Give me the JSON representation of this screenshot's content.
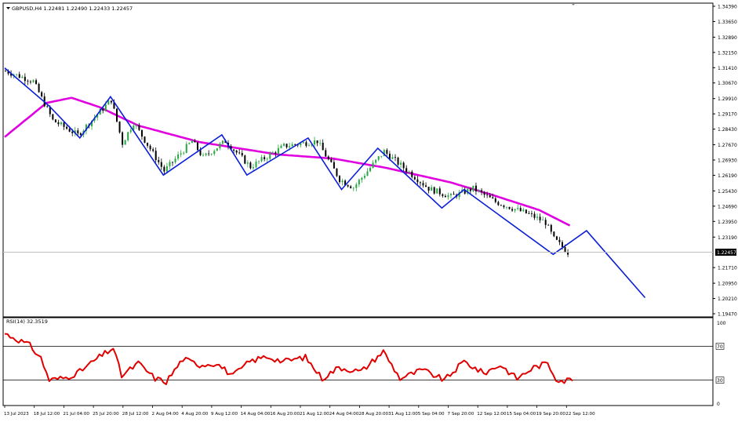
{
  "header": {
    "symbol_line": "GBPUSD,H4  1.22481 1.22490 1.22433 1.22457",
    "indicator_label": "RSI(14) 32.3519"
  },
  "colors": {
    "bull_candle": "#26a641",
    "bear_candle": "#000000",
    "moving_average": "#e000e0",
    "zigzag": "#0b1fd6",
    "rsi_line": "#e00000",
    "current_price_tag": "#000000"
  },
  "chart_data": [
    {
      "type": "candlestick",
      "symbol": "GBPUSD",
      "timeframe": "H4",
      "ohlc_header": {
        "open": 1.22481,
        "high": 1.2249,
        "low": 1.22433,
        "close": 1.22457
      },
      "current_price": 1.22457,
      "ylim": [
        1.1947,
        1.3439
      ],
      "y_ticks": [
        "1.34390",
        "1.33650",
        "1.32890",
        "1.32150",
        "1.31410",
        "1.30670",
        "1.29910",
        "1.29170",
        "1.28430",
        "1.27670",
        "1.26930",
        "1.26190",
        "1.25430",
        "1.24690",
        "1.23950",
        "1.23190",
        "1.22457",
        "1.21710",
        "1.20950",
        "1.20210",
        "1.19470"
      ],
      "x_tick_labels": [
        "13 Jul 2023",
        "18 Jul 12:00",
        "21 Jul 04:00",
        "25 Jul 20:00",
        "28 Jul 12:00",
        "2 Aug 04:00",
        "4 Aug 20:00",
        "9 Aug 12:00",
        "14 Aug 04:00",
        "16 Aug 20:00",
        "21 Aug 12:00",
        "24 Aug 04:00",
        "28 Aug 20:00",
        "31 Aug 12:00",
        "5 Sep 04:00",
        "7 Sep 20:00",
        "12 Sep 12:00",
        "15 Sep 04:00",
        "19 Sep 20:00",
        "22 Sep 12:00"
      ],
      "price_keypoints": [
        {
          "bar": 0,
          "price": 1.3125
        },
        {
          "bar": 10,
          "price": 1.3075
        },
        {
          "bar": 17,
          "price": 1.2885
        },
        {
          "bar": 26,
          "price": 1.2815
        },
        {
          "bar": 38,
          "price": 1.2985
        },
        {
          "bar": 42,
          "price": 1.2775
        },
        {
          "bar": 46,
          "price": 1.2875
        },
        {
          "bar": 57,
          "price": 1.264
        },
        {
          "bar": 67,
          "price": 1.2785
        },
        {
          "bar": 71,
          "price": 1.2705
        },
        {
          "bar": 79,
          "price": 1.2785
        },
        {
          "bar": 88,
          "price": 1.266
        },
        {
          "bar": 100,
          "price": 1.276
        },
        {
          "bar": 112,
          "price": 1.2785
        },
        {
          "bar": 120,
          "price": 1.26
        },
        {
          "bar": 125,
          "price": 1.256
        },
        {
          "bar": 136,
          "price": 1.2735
        },
        {
          "bar": 152,
          "price": 1.2555
        },
        {
          "bar": 160,
          "price": 1.2515
        },
        {
          "bar": 168,
          "price": 1.2555
        },
        {
          "bar": 176,
          "price": 1.249
        },
        {
          "bar": 188,
          "price": 1.243
        },
        {
          "bar": 194,
          "price": 1.239
        },
        {
          "bar": 197,
          "price": 1.231
        },
        {
          "bar": 202,
          "price": 1.2245
        }
      ],
      "moving_average_points": [
        {
          "bar": 0,
          "price": 1.2805
        },
        {
          "bar": 15,
          "price": 1.297
        },
        {
          "bar": 24,
          "price": 1.2995
        },
        {
          "bar": 34,
          "price": 1.295
        },
        {
          "bar": 48,
          "price": 1.286
        },
        {
          "bar": 70,
          "price": 1.278
        },
        {
          "bar": 98,
          "price": 1.272
        },
        {
          "bar": 118,
          "price": 1.27
        },
        {
          "bar": 137,
          "price": 1.2655
        },
        {
          "bar": 160,
          "price": 1.2585
        },
        {
          "bar": 176,
          "price": 1.252
        },
        {
          "bar": 192,
          "price": 1.245
        },
        {
          "bar": 203,
          "price": 1.2375
        }
      ],
      "zigzag_points": [
        {
          "bar": 0,
          "price": 1.314
        },
        {
          "bar": 16,
          "price": 1.2955
        },
        {
          "bar": 27,
          "price": 1.28
        },
        {
          "bar": 38,
          "price": 1.3
        },
        {
          "bar": 57,
          "price": 1.262
        },
        {
          "bar": 78,
          "price": 1.2815
        },
        {
          "bar": 87,
          "price": 1.262
        },
        {
          "bar": 109,
          "price": 1.28
        },
        {
          "bar": 121,
          "price": 1.255
        },
        {
          "bar": 134,
          "price": 1.275
        },
        {
          "bar": 157,
          "price": 1.246
        },
        {
          "bar": 165,
          "price": 1.255
        },
        {
          "bar": 197,
          "price": 1.2235
        },
        {
          "bar": 209,
          "price": 1.235
        },
        {
          "bar": 230,
          "price": 1.2025
        }
      ]
    },
    {
      "type": "line",
      "name": "RSI(14)",
      "value": 32.3519,
      "ylim": [
        0,
        100
      ],
      "y_ticks": [
        "100",
        "70",
        "30",
        "0"
      ],
      "levels": [
        70,
        30
      ],
      "keypoints": [
        {
          "bar": 0,
          "value": 85
        },
        {
          "bar": 4,
          "value": 79
        },
        {
          "bar": 9,
          "value": 71
        },
        {
          "bar": 13,
          "value": 56
        },
        {
          "bar": 16,
          "value": 30
        },
        {
          "bar": 22,
          "value": 33
        },
        {
          "bar": 27,
          "value": 40
        },
        {
          "bar": 33,
          "value": 55
        },
        {
          "bar": 39,
          "value": 68
        },
        {
          "bar": 42,
          "value": 35
        },
        {
          "bar": 48,
          "value": 50
        },
        {
          "bar": 54,
          "value": 32
        },
        {
          "bar": 58,
          "value": 28
        },
        {
          "bar": 64,
          "value": 55
        },
        {
          "bar": 70,
          "value": 48
        },
        {
          "bar": 76,
          "value": 50
        },
        {
          "bar": 82,
          "value": 35
        },
        {
          "bar": 88,
          "value": 52
        },
        {
          "bar": 94,
          "value": 58
        },
        {
          "bar": 100,
          "value": 52
        },
        {
          "bar": 108,
          "value": 57
        },
        {
          "bar": 114,
          "value": 32
        },
        {
          "bar": 120,
          "value": 45
        },
        {
          "bar": 128,
          "value": 40
        },
        {
          "bar": 136,
          "value": 64
        },
        {
          "bar": 142,
          "value": 32
        },
        {
          "bar": 150,
          "value": 42
        },
        {
          "bar": 158,
          "value": 30
        },
        {
          "bar": 165,
          "value": 52
        },
        {
          "bar": 172,
          "value": 38
        },
        {
          "bar": 178,
          "value": 48
        },
        {
          "bar": 184,
          "value": 32
        },
        {
          "bar": 190,
          "value": 45
        },
        {
          "bar": 195,
          "value": 50
        },
        {
          "bar": 198,
          "value": 32
        },
        {
          "bar": 201,
          "value": 29
        },
        {
          "bar": 204,
          "value": 32
        }
      ]
    }
  ]
}
